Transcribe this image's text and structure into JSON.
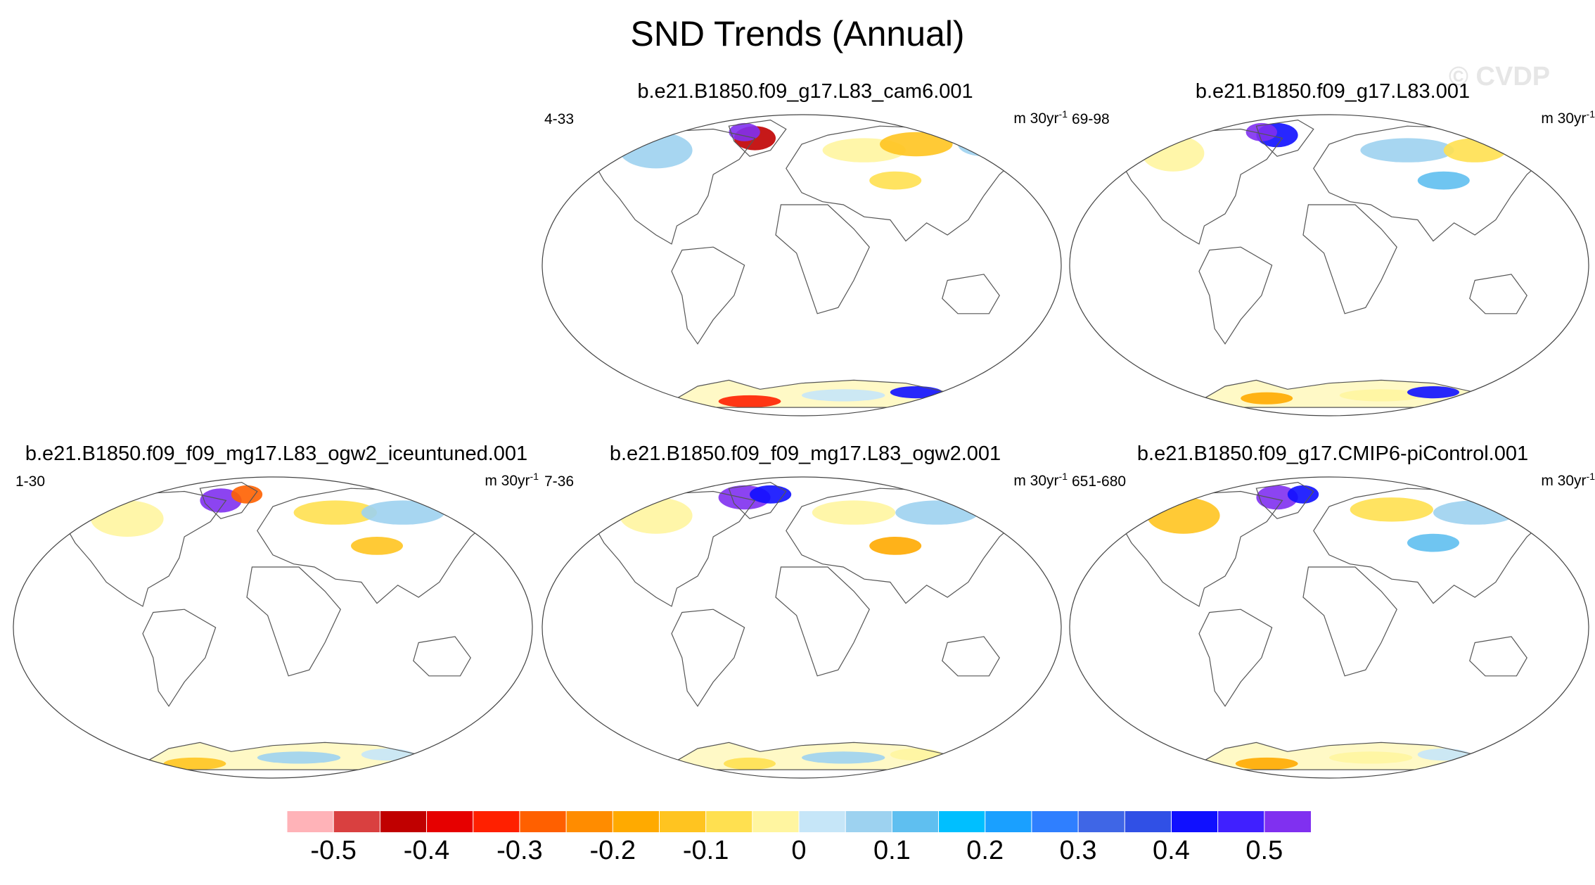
{
  "title": "SND Trends (Annual)",
  "watermark": "© CVDP",
  "chart_data": {
    "type": "heatmap",
    "projection": "robinson",
    "variable": "snow depth trend",
    "units": "m 30yr-1",
    "panels": [
      {
        "name": "b.e21.B1850.f09_g17.L83_cam6.001",
        "years": "4-33"
      },
      {
        "name": "b.e21.B1850.f09_g17.L83.001",
        "years": "69-98"
      },
      {
        "name": "b.e21.B1850.f09_f09_mg17.L83_ogw2_iceuntuned.001",
        "years": "1-30"
      },
      {
        "name": "b.e21.B1850.f09_f09_mg17.L83_ogw2.001",
        "years": "7-36"
      },
      {
        "name": "b.e21.B1850.f09_g17.CMIP6-piControl.001",
        "years": "651-680"
      }
    ],
    "colorbar": {
      "levels": [
        -0.5,
        -0.45,
        -0.4,
        -0.35,
        -0.3,
        -0.25,
        -0.2,
        -0.15,
        -0.1,
        -0.05,
        0,
        0.05,
        0.1,
        0.15,
        0.2,
        0.25,
        0.3,
        0.35,
        0.4,
        0.45,
        0.5
      ],
      "labels": [
        "-0.5",
        "-0.4",
        "-0.3",
        "-0.2",
        "-0.1",
        "0",
        "0.1",
        "0.2",
        "0.3",
        "0.4",
        "0.5"
      ],
      "colors": [
        "#ffb3b8",
        "#d94040",
        "#c00000",
        "#e60000",
        "#ff2000",
        "#ff6000",
        "#ff8c00",
        "#ffaa00",
        "#ffc420",
        "#ffe050",
        "#fff5a0",
        "#c6e6f8",
        "#9dd2f0",
        "#5fbff0",
        "#00bfff",
        "#1aa0ff",
        "#2f7fff",
        "#3f66e6",
        "#3050e6",
        "#1010ff",
        "#4020ff",
        "#8030f0"
      ]
    }
  }
}
